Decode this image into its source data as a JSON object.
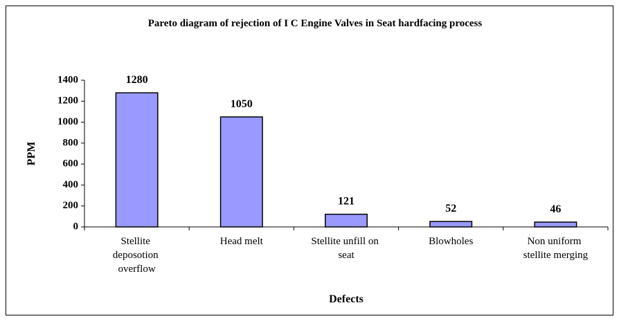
{
  "chart_data": {
    "type": "bar",
    "title": "Pareto diagram of rejection of I C Engine Valves  in Seat hardfacing process",
    "x_label": "Defects",
    "y_label": "PPM",
    "categories": [
      "Stellite deposotion overflow",
      "Head melt",
      "Stellite unfill on seat",
      "Blowholes",
      "Non uniform stellite merging"
    ],
    "values": [
      1280,
      1050,
      121,
      52,
      46
    ],
    "color": "#9999ff",
    "ylim": [
      0,
      1400
    ],
    "yticks": [
      0,
      200,
      400,
      600,
      800,
      1000,
      1200,
      1400
    ],
    "grid": false
  }
}
